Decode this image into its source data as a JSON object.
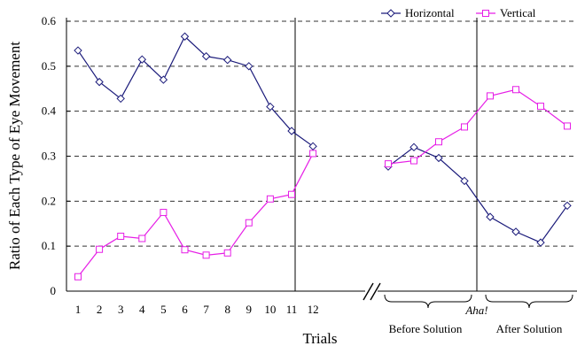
{
  "chart_data": {
    "type": "line",
    "xlabel": "Trials",
    "ylabel": "Ratio of Each Type of  Eye Movement",
    "ylim": [
      0,
      0.6
    ],
    "yticks": [
      "0",
      "0.1",
      "0.2",
      "0.3",
      "0.4",
      "0.5",
      "0.6"
    ],
    "x_tick_labels": [
      "1",
      "2",
      "3",
      "4",
      "5",
      "6",
      "7",
      "8",
      "9",
      "10",
      "11",
      "12"
    ],
    "grid": "horizontal dashed",
    "legend_position": "top-right",
    "segments": [
      {
        "label": "Before Solution"
      },
      {
        "label": "After Solution"
      }
    ],
    "annotation": "Aha!",
    "series": [
      {
        "name": "Horizontal",
        "color": "#1a1a7a",
        "marker": "diamond",
        "trials": [
          0.535,
          0.465,
          0.428,
          0.515,
          0.47,
          0.566,
          0.522,
          0.514,
          0.5,
          0.41,
          0.356,
          0.322
        ],
        "before_solution": [
          0.277,
          0.32,
          0.296,
          0.245
        ],
        "after_solution": [
          0.165,
          0.132,
          0.108,
          0.19
        ]
      },
      {
        "name": "Vertical",
        "color": "#e61ee6",
        "marker": "square",
        "trials": [
          0.032,
          0.093,
          0.122,
          0.117,
          0.175,
          0.092,
          0.08,
          0.085,
          0.152,
          0.205,
          0.215,
          0.306
        ],
        "before_solution": [
          0.283,
          0.29,
          0.332,
          0.365
        ],
        "after_solution": [
          0.434,
          0.448,
          0.411,
          0.367
        ]
      }
    ]
  }
}
